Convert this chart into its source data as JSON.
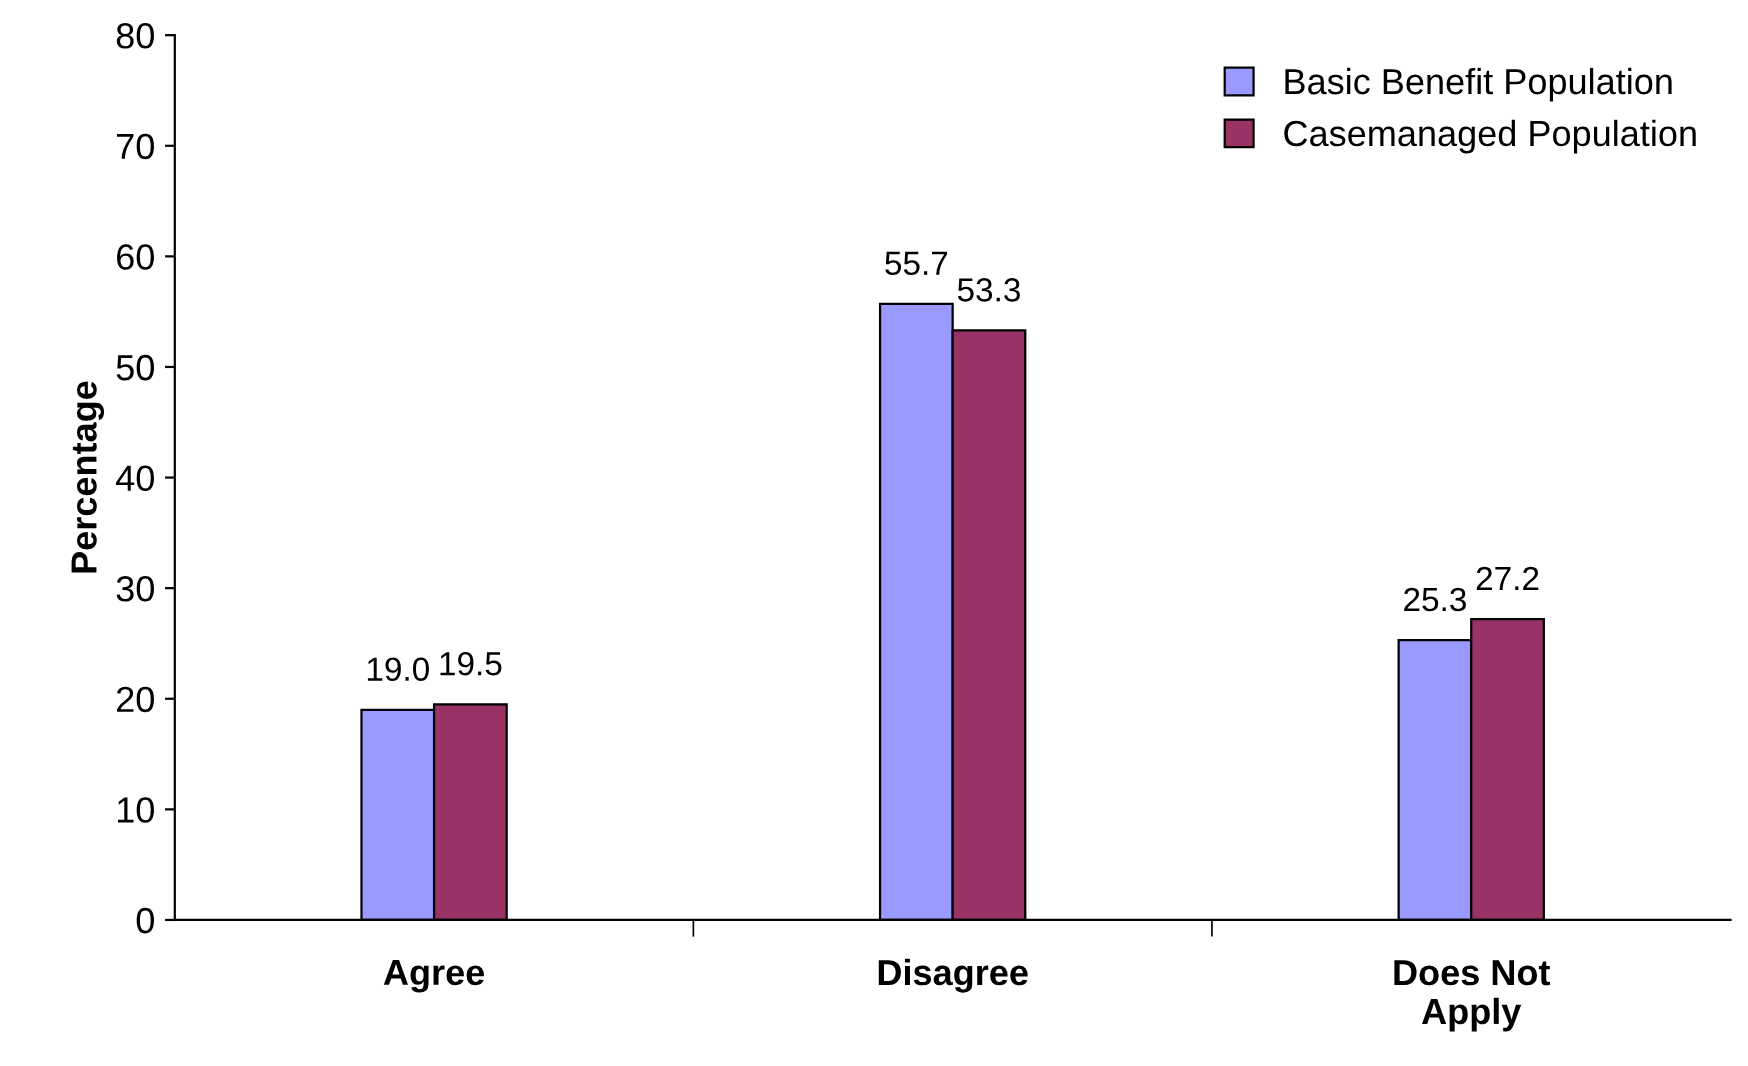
{
  "chart_data": {
    "type": "bar",
    "ylabel": "Percentage",
    "categories": [
      "Agree",
      "Disagree",
      "Does Not\nApply"
    ],
    "series": [
      {
        "name": "Basic Benefit Population",
        "color": "#9999ff",
        "values": [
          19.0,
          55.7,
          25.3
        ],
        "value_labels": [
          "19.0",
          "55.7",
          "25.3"
        ]
      },
      {
        "name": "Casemanaged Population",
        "color": "#993366",
        "values": [
          19.5,
          53.3,
          27.2
        ],
        "value_labels": [
          "19.5",
          "53.3",
          "27.2"
        ]
      }
    ],
    "ylim": [
      0,
      80
    ],
    "yticks": [
      0,
      10,
      20,
      30,
      40,
      50,
      60,
      70,
      80
    ],
    "grid": false,
    "legend": "top right"
  }
}
